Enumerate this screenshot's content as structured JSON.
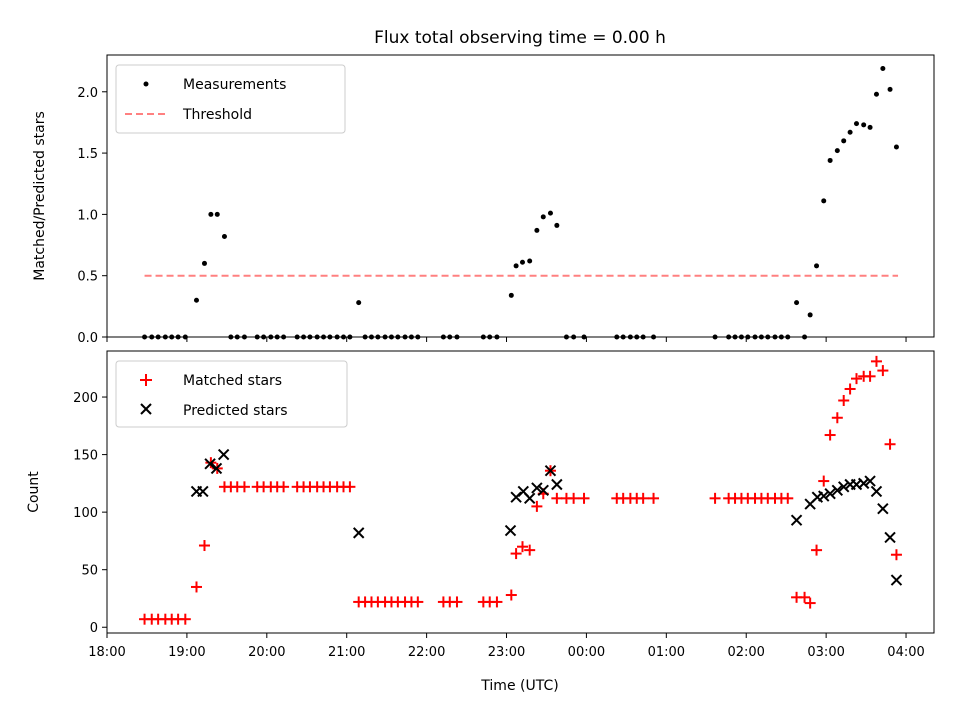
{
  "chart_data": [
    {
      "type": "scatter",
      "title": "Flux total observing time = 0.00 h",
      "ylabel": "Matched/Predicted stars",
      "xlabel": "",
      "x_unit": "hours since 18:00 UTC",
      "xlim": [
        0,
        10.35
      ],
      "ylim": [
        0,
        2.3
      ],
      "y_ticks": [
        "0.0",
        "0.5",
        "1.0",
        "1.5",
        "2.0"
      ],
      "legend": {
        "placement": "top-left",
        "entries": [
          "Measurements",
          "Threshold"
        ]
      },
      "threshold": {
        "name": "Threshold",
        "value": 0.5,
        "x_range": [
          0.47,
          9.9
        ],
        "color": "#ff8080"
      },
      "series": [
        {
          "name": "Measurements",
          "color": "#000000",
          "points": [
            [
              0.47,
              0
            ],
            [
              0.56,
              0
            ],
            [
              0.64,
              0
            ],
            [
              0.73,
              0
            ],
            [
              0.81,
              0
            ],
            [
              0.89,
              0
            ],
            [
              0.98,
              0
            ],
            [
              1.12,
              0.3
            ],
            [
              1.22,
              0.6
            ],
            [
              1.3,
              1.0
            ],
            [
              1.38,
              1.0
            ],
            [
              1.47,
              0.82
            ],
            [
              1.55,
              0
            ],
            [
              1.63,
              0
            ],
            [
              1.72,
              0
            ],
            [
              1.88,
              0
            ],
            [
              1.96,
              0
            ],
            [
              2.05,
              0
            ],
            [
              2.13,
              0
            ],
            [
              2.21,
              0
            ],
            [
              2.38,
              0
            ],
            [
              2.46,
              0
            ],
            [
              2.54,
              0
            ],
            [
              2.63,
              0
            ],
            [
              2.71,
              0
            ],
            [
              2.79,
              0
            ],
            [
              2.88,
              0
            ],
            [
              2.96,
              0
            ],
            [
              3.04,
              0
            ],
            [
              3.15,
              0.28
            ],
            [
              3.23,
              0
            ],
            [
              3.31,
              0
            ],
            [
              3.39,
              0
            ],
            [
              3.48,
              0
            ],
            [
              3.56,
              0
            ],
            [
              3.64,
              0
            ],
            [
              3.73,
              0
            ],
            [
              3.81,
              0
            ],
            [
              3.89,
              0
            ],
            [
              4.21,
              0
            ],
            [
              4.29,
              0
            ],
            [
              4.38,
              0
            ],
            [
              4.71,
              0
            ],
            [
              4.79,
              0
            ],
            [
              4.88,
              0
            ],
            [
              5.06,
              0.34
            ],
            [
              5.12,
              0.58
            ],
            [
              5.2,
              0.61
            ],
            [
              5.29,
              0.62
            ],
            [
              5.38,
              0.87
            ],
            [
              5.46,
              0.98
            ],
            [
              5.55,
              1.01
            ],
            [
              5.63,
              0.91
            ],
            [
              5.75,
              0
            ],
            [
              5.84,
              0
            ],
            [
              5.97,
              0
            ],
            [
              6.38,
              0
            ],
            [
              6.46,
              0
            ],
            [
              6.55,
              0
            ],
            [
              6.63,
              0
            ],
            [
              6.71,
              0
            ],
            [
              6.84,
              0
            ],
            [
              7.61,
              0
            ],
            [
              7.78,
              0
            ],
            [
              7.86,
              0
            ],
            [
              7.94,
              0
            ],
            [
              8.02,
              0
            ],
            [
              8.11,
              0
            ],
            [
              8.19,
              0
            ],
            [
              8.27,
              0
            ],
            [
              8.36,
              0
            ],
            [
              8.44,
              0
            ],
            [
              8.52,
              0
            ],
            [
              8.63,
              0.28
            ],
            [
              8.73,
              0
            ],
            [
              8.8,
              0.18
            ],
            [
              8.88,
              0.58
            ],
            [
              8.97,
              1.11
            ],
            [
              9.05,
              1.44
            ],
            [
              9.14,
              1.52
            ],
            [
              9.22,
              1.6
            ],
            [
              9.3,
              1.67
            ],
            [
              9.38,
              1.74
            ],
            [
              9.47,
              1.73
            ],
            [
              9.55,
              1.71
            ],
            [
              9.63,
              1.98
            ],
            [
              9.71,
              2.19
            ],
            [
              9.8,
              2.02
            ],
            [
              9.88,
              1.55
            ]
          ]
        }
      ]
    },
    {
      "type": "scatter",
      "title": "",
      "xlabel": "Time (UTC)",
      "ylabel": "Count",
      "x_unit": "hours since 18:00 UTC",
      "xlim": [
        0,
        10.35
      ],
      "ylim": [
        -5,
        240
      ],
      "x_ticks": [
        "18:00",
        "19:00",
        "20:00",
        "21:00",
        "22:00",
        "23:00",
        "00:00",
        "01:00",
        "02:00",
        "03:00",
        "04:00"
      ],
      "y_ticks": [
        "0",
        "50",
        "100",
        "150",
        "200"
      ],
      "legend": {
        "placement": "top-left",
        "entries": [
          "Matched stars",
          "Predicted stars"
        ]
      },
      "series": [
        {
          "name": "Matched stars",
          "marker": "plus",
          "color": "#ff0000",
          "points": [
            [
              0.47,
              7
            ],
            [
              0.56,
              7
            ],
            [
              0.64,
              7
            ],
            [
              0.73,
              7
            ],
            [
              0.81,
              7
            ],
            [
              0.89,
              7
            ],
            [
              0.98,
              7
            ],
            [
              1.12,
              35
            ],
            [
              1.22,
              71
            ],
            [
              1.3,
              143
            ],
            [
              1.38,
              138
            ],
            [
              1.47,
              122
            ],
            [
              1.55,
              122
            ],
            [
              1.63,
              122
            ],
            [
              1.72,
              122
            ],
            [
              1.88,
              122
            ],
            [
              1.96,
              122
            ],
            [
              2.05,
              122
            ],
            [
              2.13,
              122
            ],
            [
              2.21,
              122
            ],
            [
              2.38,
              122
            ],
            [
              2.46,
              122
            ],
            [
              2.54,
              122
            ],
            [
              2.63,
              122
            ],
            [
              2.71,
              122
            ],
            [
              2.79,
              122
            ],
            [
              2.88,
              122
            ],
            [
              2.96,
              122
            ],
            [
              3.04,
              122
            ],
            [
              3.15,
              22
            ],
            [
              3.23,
              22
            ],
            [
              3.31,
              22
            ],
            [
              3.39,
              22
            ],
            [
              3.48,
              22
            ],
            [
              3.56,
              22
            ],
            [
              3.64,
              22
            ],
            [
              3.73,
              22
            ],
            [
              3.81,
              22
            ],
            [
              3.89,
              22
            ],
            [
              4.21,
              22
            ],
            [
              4.29,
              22
            ],
            [
              4.38,
              22
            ],
            [
              4.71,
              22
            ],
            [
              4.79,
              22
            ],
            [
              4.88,
              22
            ],
            [
              5.06,
              28
            ],
            [
              5.12,
              64
            ],
            [
              5.2,
              70
            ],
            [
              5.29,
              67
            ],
            [
              5.38,
              105
            ],
            [
              5.46,
              116
            ],
            [
              5.55,
              136
            ],
            [
              5.63,
              112
            ],
            [
              5.75,
              112
            ],
            [
              5.84,
              112
            ],
            [
              5.97,
              112
            ],
            [
              6.38,
              112
            ],
            [
              6.46,
              112
            ],
            [
              6.55,
              112
            ],
            [
              6.63,
              112
            ],
            [
              6.71,
              112
            ],
            [
              6.84,
              112
            ],
            [
              7.61,
              112
            ],
            [
              7.78,
              112
            ],
            [
              7.86,
              112
            ],
            [
              7.94,
              112
            ],
            [
              8.02,
              112
            ],
            [
              8.11,
              112
            ],
            [
              8.19,
              112
            ],
            [
              8.27,
              112
            ],
            [
              8.36,
              112
            ],
            [
              8.44,
              112
            ],
            [
              8.52,
              112
            ],
            [
              8.63,
              26
            ],
            [
              8.73,
              26
            ],
            [
              8.8,
              21
            ],
            [
              8.88,
              67
            ],
            [
              8.97,
              127
            ],
            [
              9.05,
              167
            ],
            [
              9.14,
              182
            ],
            [
              9.22,
              197
            ],
            [
              9.3,
              207
            ],
            [
              9.38,
              216
            ],
            [
              9.47,
              218
            ],
            [
              9.55,
              218
            ],
            [
              9.63,
              231
            ],
            [
              9.71,
              223
            ],
            [
              9.8,
              159
            ],
            [
              9.88,
              63
            ]
          ]
        },
        {
          "name": "Predicted stars",
          "marker": "x",
          "color": "#000000",
          "points": [
            [
              1.12,
              118
            ],
            [
              1.2,
              118
            ],
            [
              1.29,
              142
            ],
            [
              1.37,
              138
            ],
            [
              1.46,
              150
            ],
            [
              3.15,
              82
            ],
            [
              5.05,
              84
            ],
            [
              5.12,
              113
            ],
            [
              5.21,
              118
            ],
            [
              5.29,
              112
            ],
            [
              5.38,
              121
            ],
            [
              5.46,
              119
            ],
            [
              5.55,
              136
            ],
            [
              5.63,
              124
            ],
            [
              8.63,
              93
            ],
            [
              8.8,
              107
            ],
            [
              8.89,
              113
            ],
            [
              8.97,
              114
            ],
            [
              9.05,
              116
            ],
            [
              9.14,
              119
            ],
            [
              9.22,
              122
            ],
            [
              9.3,
              124
            ],
            [
              9.38,
              124
            ],
            [
              9.47,
              125
            ],
            [
              9.55,
              127
            ],
            [
              9.63,
              118
            ],
            [
              9.71,
              103
            ],
            [
              9.8,
              78
            ],
            [
              9.88,
              41
            ]
          ]
        }
      ]
    }
  ]
}
